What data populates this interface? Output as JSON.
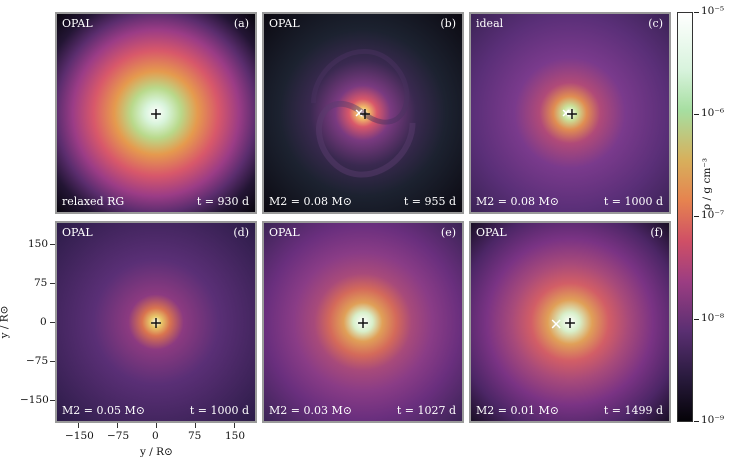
{
  "panels": [
    {
      "eos": "OPAL",
      "letter": "(a)",
      "mass": "relaxed RG",
      "time": "t = 930 d"
    },
    {
      "eos": "OPAL",
      "letter": "(b)",
      "mass": "M2 = 0.08 M⊙",
      "time": "t = 955 d"
    },
    {
      "eos": "ideal",
      "letter": "(c)",
      "mass": "M2 = 0.08 M⊙",
      "time": "t = 1000 d"
    },
    {
      "eos": "OPAL",
      "letter": "(d)",
      "mass": "M2 = 0.05 M⊙",
      "time": "t = 1000 d"
    },
    {
      "eos": "OPAL",
      "letter": "(e)",
      "mass": "M2 = 0.03 M⊙",
      "time": "t = 1027 d"
    },
    {
      "eos": "OPAL",
      "letter": "(f)",
      "mass": "M2 = 0.01 M⊙",
      "time": "t = 1499 d"
    }
  ],
  "axes": {
    "xlabel": "y / R⊙",
    "ylabel": "y / R⊙",
    "xticks": [
      "−150",
      "−75",
      "0",
      "75",
      "150"
    ],
    "yticks": [
      "150",
      "75",
      "0",
      "−75",
      "−150"
    ]
  },
  "colorbar": {
    "label": "ρ / g cm⁻³",
    "ticks": [
      "10⁻⁵",
      "10⁻⁶",
      "10⁻⁷",
      "10⁻⁸",
      "10⁻⁹"
    ],
    "colors": {
      "high": "#ffffff",
      "mid": "#e6834f",
      "low": "#050308"
    }
  }
}
